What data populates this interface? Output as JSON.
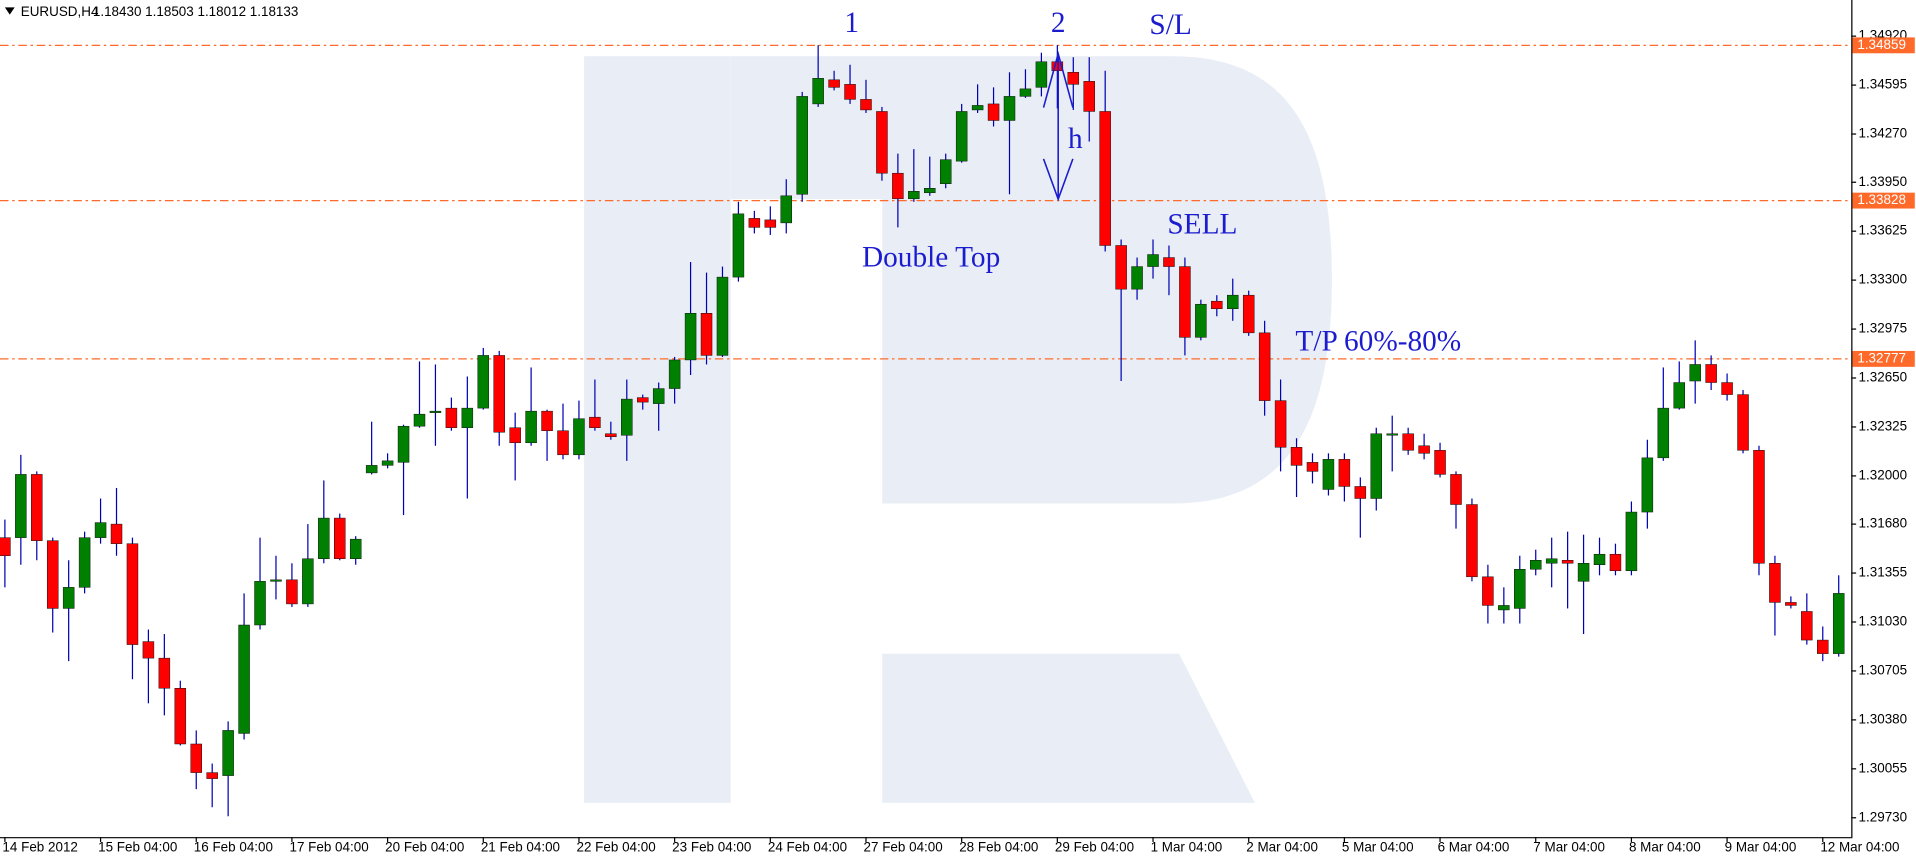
{
  "chart_data": {
    "type": "candlestick",
    "header": "EURUSD,H4",
    "header_values": "1.18430 1.18503 1.18012 1.18133",
    "annotations": [
      "1",
      "2",
      "S/L",
      "h",
      "Double Top",
      "SELL",
      "T/P 60%-80%"
    ],
    "categories": [
      "14 Feb 2012",
      null,
      null,
      null,
      null,
      null,
      "15 Feb 04:00",
      null,
      null,
      null,
      null,
      null,
      "16 Feb 04:00",
      null,
      null,
      null,
      null,
      null,
      "17 Feb 04:00",
      null,
      null,
      null,
      null,
      null,
      "20 Feb 04:00",
      null,
      null,
      null,
      null,
      null,
      "21 Feb 04:00",
      null,
      null,
      null,
      null,
      null,
      "22 Feb 04:00",
      null,
      null,
      null,
      null,
      null,
      "23 Feb 04:00",
      null,
      null,
      null,
      null,
      null,
      "24 Feb 04:00",
      null,
      null,
      null,
      null,
      null,
      "27 Feb 04:00",
      null,
      null,
      null,
      null,
      null,
      "28 Feb 04:00",
      null,
      null,
      null,
      null,
      null,
      "29 Feb 04:00",
      null,
      null,
      null,
      null,
      null,
      "1 Mar 04:00",
      null,
      null,
      null,
      null,
      null,
      "2 Mar 04:00",
      null,
      null,
      null,
      null,
      null,
      "5 Mar 04:00",
      null,
      null,
      null,
      null,
      null,
      "6 Mar 04:00",
      null,
      null,
      null,
      null,
      null,
      "7 Mar 04:00",
      null,
      null,
      null,
      null,
      null,
      "8 Mar 04:00",
      null,
      null,
      null,
      null,
      null,
      "9 Mar 04:00",
      null,
      null,
      null,
      null,
      null,
      "12 Mar 04:00",
      null
    ],
    "open": [
      1.3159,
      1.3159,
      1.3201,
      1.3157,
      1.3112,
      1.3126,
      1.3159,
      1.3168,
      1.3155,
      1.309,
      1.3079,
      1.3059,
      1.3022,
      1.3003,
      1.3001,
      1.3029,
      1.3101,
      1.313,
      1.3131,
      1.3115,
      1.3145,
      1.3172,
      1.3145,
      1.3202,
      1.3207,
      1.3209,
      1.3233,
      1.3242,
      1.3245,
      1.3232,
      1.3245,
      1.328,
      1.3232,
      1.3222,
      1.3243,
      1.323,
      1.3214,
      1.3239,
      1.3228,
      1.3227,
      1.3252,
      1.3248,
      1.3258,
      1.3277,
      1.3308,
      1.328,
      1.3332,
      1.3371,
      1.337,
      1.3368,
      1.3387,
      1.3447,
      1.3463,
      1.346,
      1.345,
      1.3442,
      1.3401,
      1.3384,
      1.3388,
      1.3394,
      1.3409,
      1.3443,
      1.3447,
      1.3436,
      1.3452,
      1.3458,
      1.3475,
      1.3468,
      1.3462,
      1.3442,
      1.3353,
      1.3324,
      1.3339,
      1.3345,
      1.3339,
      1.3292,
      1.3316,
      1.3311,
      1.332,
      1.3295,
      1.325,
      1.3219,
      1.3209,
      1.3191,
      1.3211,
      1.3193,
      1.3185,
      1.3228,
      1.3228,
      1.322,
      1.3217,
      1.3201,
      1.3181,
      1.3133,
      1.3111,
      1.3112,
      1.3138,
      1.3142,
      1.3144,
      1.313,
      1.3141,
      1.3148,
      1.3137,
      1.3176,
      1.3212,
      1.3245,
      1.3263,
      1.3274,
      1.3262,
      1.3254,
      1.3217,
      1.3142,
      1.3116,
      1.311,
      1.3091,
      1.3082
    ],
    "high": [
      1.3171,
      1.3214,
      1.3203,
      1.3159,
      1.3144,
      1.3163,
      1.3185,
      1.3192,
      1.3159,
      1.3098,
      1.3095,
      1.3064,
      1.3031,
      1.3009,
      1.3037,
      1.3122,
      1.3159,
      1.3147,
      1.3142,
      1.3168,
      1.3197,
      1.3175,
      1.316,
      1.3236,
      1.3215,
      1.3234,
      1.3276,
      1.3274,
      1.3252,
      1.3266,
      1.3285,
      1.3283,
      1.3242,
      1.3272,
      1.3244,
      1.3248,
      1.325,
      1.3264,
      1.3236,
      1.3264,
      1.3254,
      1.3262,
      1.3279,
      1.3342,
      1.3335,
      1.3339,
      1.3382,
      1.3376,
      1.3379,
      1.3397,
      1.3455,
      1.3486,
      1.3469,
      1.3473,
      1.3463,
      1.3445,
      1.3414,
      1.3417,
      1.3412,
      1.3414,
      1.3447,
      1.346,
      1.3458,
      1.3468,
      1.347,
      1.3481,
      1.3486,
      1.3478,
      1.3478,
      1.3469,
      1.3357,
      1.3345,
      1.3357,
      1.3353,
      1.3345,
      1.3317,
      1.332,
      1.3331,
      1.3323,
      1.3303,
      1.3264,
      1.3225,
      1.3215,
      1.3215,
      1.3215,
      1.3199,
      1.3232,
      1.324,
      1.3232,
      1.3228,
      1.3222,
      1.3203,
      1.3185,
      1.3141,
      1.3126,
      1.3147,
      1.3151,
      1.3159,
      1.3163,
      1.3161,
      1.3159,
      1.3155,
      1.3183,
      1.3224,
      1.3272,
      1.3276,
      1.329,
      1.328,
      1.3268,
      1.3257,
      1.322,
      1.3147,
      1.312,
      1.3122,
      1.31,
      1.3134
    ],
    "low": [
      1.3126,
      1.3141,
      1.3144,
      1.3096,
      1.3077,
      1.3122,
      1.3155,
      1.3147,
      1.3065,
      1.3049,
      1.3041,
      1.3021,
      1.2992,
      1.298,
      1.2974,
      1.3025,
      1.3098,
      1.3118,
      1.3113,
      1.3113,
      1.3142,
      1.3144,
      1.3141,
      1.3201,
      1.3205,
      1.3174,
      1.3232,
      1.322,
      1.323,
      1.3185,
      1.3244,
      1.322,
      1.3197,
      1.322,
      1.321,
      1.3211,
      1.3211,
      1.323,
      1.3224,
      1.321,
      1.3244,
      1.323,
      1.3248,
      1.3267,
      1.3274,
      1.3279,
      1.3329,
      1.3361,
      1.336,
      1.3361,
      1.3382,
      1.3445,
      1.3456,
      1.3447,
      1.3441,
      1.3396,
      1.3365,
      1.3382,
      1.3386,
      1.3391,
      1.3408,
      1.3441,
      1.3432,
      1.3387,
      1.3451,
      1.3452,
      1.3444,
      1.3443,
      1.3422,
      1.3349,
      1.3263,
      1.3317,
      1.3331,
      1.332,
      1.328,
      1.329,
      1.3306,
      1.3303,
      1.3293,
      1.324,
      1.3203,
      1.3186,
      1.3195,
      1.3187,
      1.3183,
      1.3159,
      1.3177,
      1.3203,
      1.3214,
      1.3211,
      1.3199,
      1.3165,
      1.313,
      1.3102,
      1.3102,
      1.3102,
      1.3134,
      1.3126,
      1.3112,
      1.3095,
      1.3134,
      1.3134,
      1.3134,
      1.3165,
      1.321,
      1.3244,
      1.3248,
      1.3257,
      1.325,
      1.3215,
      1.3134,
      1.3094,
      1.3112,
      1.3088,
      1.3077,
      1.308
    ],
    "close": [
      1.3147,
      1.3201,
      1.3157,
      1.3112,
      1.3126,
      1.3159,
      1.3169,
      1.3155,
      1.3088,
      1.3079,
      1.3059,
      1.3022,
      1.3003,
      1.2999,
      1.3031,
      1.3101,
      1.313,
      1.3131,
      1.3115,
      1.3145,
      1.3172,
      1.3145,
      1.3158,
      1.3207,
      1.321,
      1.3233,
      1.3241,
      1.3243,
      1.3232,
      1.3245,
      1.328,
      1.3229,
      1.3222,
      1.3243,
      1.323,
      1.3214,
      1.3238,
      1.3232,
      1.3226,
      1.3251,
      1.3249,
      1.3258,
      1.3277,
      1.3308,
      1.328,
      1.3332,
      1.3374,
      1.3365,
      1.3365,
      1.3386,
      1.3452,
      1.3464,
      1.3458,
      1.345,
      1.3443,
      1.3401,
      1.3384,
      1.3389,
      1.3391,
      1.341,
      1.3442,
      1.3446,
      1.3436,
      1.3452,
      1.3457,
      1.3475,
      1.3469,
      1.346,
      1.3442,
      1.3353,
      1.3324,
      1.3339,
      1.3347,
      1.3339,
      1.3292,
      1.3314,
      1.3311,
      1.332,
      1.3295,
      1.325,
      1.3219,
      1.3207,
      1.3203,
      1.3211,
      1.3193,
      1.3185,
      1.3228,
      1.3228,
      1.3217,
      1.3215,
      1.3201,
      1.3181,
      1.3133,
      1.3114,
      1.3114,
      1.3138,
      1.3144,
      1.3145,
      1.3142,
      1.3142,
      1.3148,
      1.3137,
      1.3176,
      1.3212,
      1.3245,
      1.3262,
      1.3274,
      1.3262,
      1.3254,
      1.3217,
      1.3142,
      1.3116,
      1.3114,
      1.3091,
      1.3082,
      1.3122
    ],
    "up_color": "#008000",
    "down_color": "#ff0000",
    "wick_color": "#0000b4",
    "levels": [
      1.34859,
      1.33828,
      1.32777
    ],
    "level_color": "#ff6a2a",
    "ylim": [
      1.2961,
      1.3516
    ],
    "yticks": [
      {
        "value": 1.3492,
        "label": "1.34920"
      },
      1.34595,
      {
        "value": 1.3427,
        "label": "1.34270"
      },
      {
        "value": 1.3395,
        "label": "1.33950"
      },
      1.33625,
      {
        "value": 1.333,
        "label": "1.33300"
      },
      1.32975,
      {
        "value": 1.3265,
        "label": "1.32650"
      },
      1.32325,
      {
        "value": 1.32,
        "label": "1.32000"
      },
      {
        "value": 1.3168,
        "label": "1.31680"
      },
      1.31355,
      {
        "value": 1.3103,
        "label": "1.31030"
      },
      1.30705,
      {
        "value": 1.3038,
        "label": "1.30380"
      },
      1.30055,
      {
        "value": 1.2973,
        "label": "1.29730"
      }
    ]
  }
}
